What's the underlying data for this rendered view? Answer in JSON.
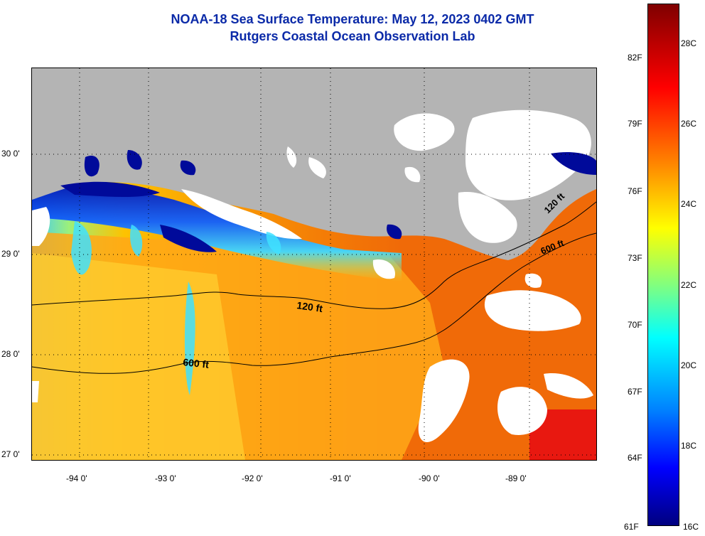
{
  "title": "NOAA-18 Sea Surface Temperature:  May 12, 2023 0402 GMT",
  "subtitle": "Rutgers Coastal Ocean Observation Lab",
  "latitude_labels": [
    "30 0'",
    "29 0'",
    "28 0'",
    "27 0'"
  ],
  "longitude_labels": [
    "-94 0'",
    "-93 0'",
    "-92 0'",
    "-91 0'",
    "-90 0'",
    "-89 0'"
  ],
  "contours": {
    "label_120": "120 ft",
    "label_600": "600 ft",
    "label_120_ne": "120 ft",
    "label_600_ne": "600 ft"
  },
  "colorbar": {
    "fahrenheit": [
      "82F",
      "79F",
      "76F",
      "73F",
      "70F",
      "67F",
      "64F",
      "61F"
    ],
    "celsius": [
      "28C",
      "26C",
      "24C",
      "22C",
      "20C",
      "18C",
      "16C"
    ]
  },
  "colors": {
    "land": "#b4b4b4",
    "cloud": "#ffffff",
    "title": "#0b2aa8",
    "warm": "#f0730a",
    "cool": "#00c8ff"
  }
}
